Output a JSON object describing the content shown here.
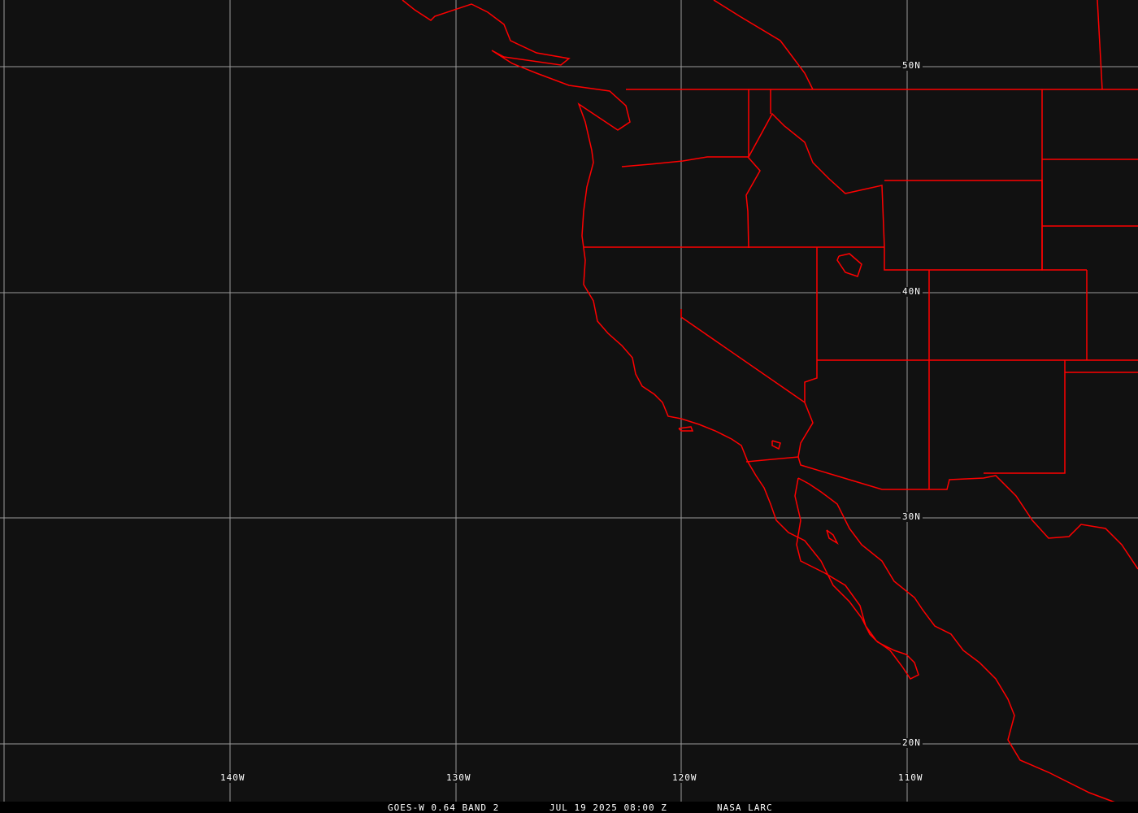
{
  "caption": {
    "satellite": "GOES-W 0.64 BAND 2",
    "datetime": "JUL 19 2025 08:00 Z",
    "source": "NASA LARC"
  },
  "grid": {
    "lat_labels": [
      "50N",
      "40N",
      "30N",
      "20N"
    ],
    "lon_labels": [
      "140W",
      "130W",
      "120W",
      "110W"
    ]
  },
  "colors": {
    "background": "#111111",
    "grid": "#9a9a9a",
    "boundaries": "#ff0000",
    "text": "#ffffff"
  }
}
